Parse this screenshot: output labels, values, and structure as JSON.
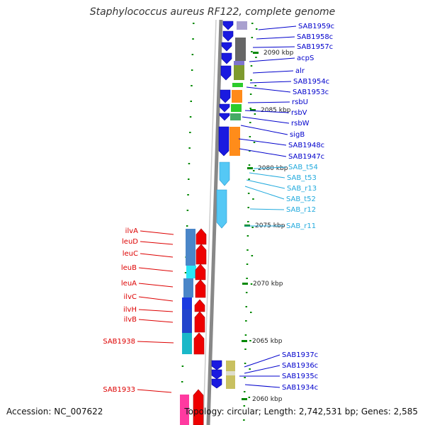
{
  "title": "Staphylococcus aureus RF122, complete genome",
  "accession_label": "Accession: NC_007622",
  "topology_label": "Topology: circular; Length: 2,742,531 bp; Genes: 2,585",
  "colors": {
    "forward_gene_label": "#0000cc",
    "trna_label": "#22aadd",
    "reverse_gene_label": "#dd0000",
    "backbone": "#888888",
    "tick": "#008800"
  },
  "coordinate_ticks": [
    "2090 kbp",
    "2085 kbp",
    "2080 kbp",
    "2075 kbp",
    "2070 kbp",
    "2065 kbp",
    "2060 kbp"
  ],
  "forward_genes": [
    "SAB1959c",
    "SAB1958c",
    "SAB1957c",
    "acpS",
    "alr",
    "SAB1954c",
    "SAB1953c",
    "rsbU",
    "rsbV",
    "rsbW",
    "sigB",
    "SAB1948c",
    "SAB1947c"
  ],
  "rna_features": [
    "SAB_t54",
    "SAB_t53",
    "SAB_r13",
    "SAB_t52",
    "SAB_r12",
    "SAB_r11"
  ],
  "reverse_genes": [
    "ilvA",
    "leuD",
    "leuC",
    "leuB",
    "leuA",
    "ilvC",
    "ilvH",
    "ilvB",
    "SAB1938",
    "SAB1933"
  ],
  "lower_genes": [
    "SAB1937c",
    "SAB1936c",
    "SAB1935c",
    "SAB1934c"
  ]
}
